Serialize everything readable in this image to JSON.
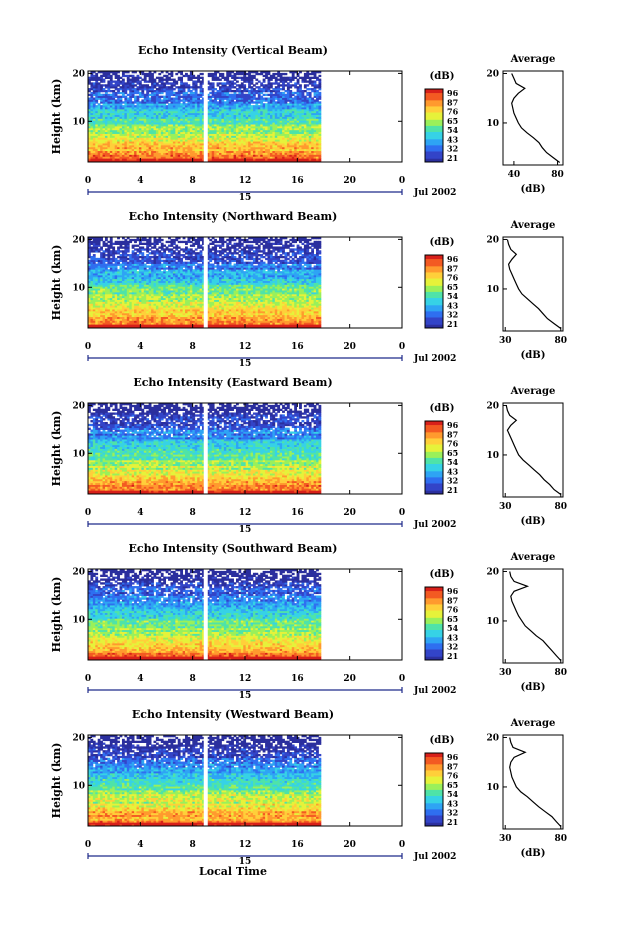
{
  "chart_data": [
    {
      "type": "heatmap",
      "title": "Echo Intensity (Vertical Beam)",
      "ylabel": "Height (km)",
      "yticks": [
        "20",
        "10"
      ],
      "xticks": [
        "0",
        "4",
        "8",
        "12",
        "16",
        "20",
        "0"
      ],
      "xlim": [
        0,
        24
      ],
      "ylim": [
        1.5,
        20.5
      ],
      "data_end_hour": 17.8,
      "gap_hour": 9.0,
      "date_marker": "15",
      "date_label": "Jul 2002",
      "colorbar": {
        "unit": "(dB)",
        "ticks": [
          "96",
          "87",
          "76",
          "65",
          "54",
          "43",
          "32",
          "21"
        ]
      },
      "average": {
        "title": "Average",
        "xlabel": "(dB)",
        "xticks": [
          "40",
          "80"
        ],
        "yticks": [
          "20",
          "10"
        ],
        "xlim": [
          30,
          85
        ],
        "heights": [
          2,
          3,
          4,
          5,
          6,
          7,
          8,
          9,
          10,
          11,
          12,
          13,
          14,
          15,
          16,
          17,
          18,
          19,
          20
        ],
        "values": [
          82,
          76,
          70,
          66,
          63,
          58,
          52,
          47,
          44,
          42,
          40,
          39,
          38,
          40,
          44,
          50,
          42,
          40,
          38
        ]
      }
    },
    {
      "type": "heatmap",
      "title": "Echo Intensity (Northward Beam)",
      "ylabel": "Height (km)",
      "yticks": [
        "20",
        "10"
      ],
      "xticks": [
        "0",
        "4",
        "8",
        "12",
        "16",
        "20",
        "0"
      ],
      "xlim": [
        0,
        24
      ],
      "ylim": [
        1.5,
        20.5
      ],
      "data_end_hour": 17.8,
      "gap_hour": 9.0,
      "date_marker": "15",
      "date_label": "Jul 2002",
      "colorbar": {
        "unit": "(dB)",
        "ticks": [
          "96",
          "87",
          "76",
          "65",
          "54",
          "43",
          "32",
          "21"
        ]
      },
      "average": {
        "title": "Average",
        "xlabel": "(dB)",
        "xticks": [
          "30",
          "80"
        ],
        "yticks": [
          "20",
          "10"
        ],
        "xlim": [
          28,
          82
        ],
        "heights": [
          2,
          3,
          4,
          5,
          6,
          7,
          8,
          9,
          10,
          11,
          12,
          13,
          14,
          15,
          16,
          17,
          18,
          19,
          20
        ],
        "values": [
          80,
          74,
          68,
          64,
          60,
          55,
          50,
          45,
          42,
          40,
          38,
          36,
          34,
          33,
          36,
          40,
          35,
          33,
          32
        ]
      }
    },
    {
      "type": "heatmap",
      "title": "Echo Intensity (Eastward Beam)",
      "ylabel": "Height (km)",
      "yticks": [
        "20",
        "10"
      ],
      "xticks": [
        "0",
        "4",
        "8",
        "12",
        "16",
        "20",
        "0"
      ],
      "xlim": [
        0,
        24
      ],
      "ylim": [
        1.5,
        20.5
      ],
      "data_end_hour": 17.8,
      "gap_hour": 9.0,
      "date_marker": "15",
      "date_label": "Jul 2002",
      "colorbar": {
        "unit": "(dB)",
        "ticks": [
          "96",
          "87",
          "76",
          "65",
          "54",
          "43",
          "32",
          "21"
        ]
      },
      "average": {
        "title": "Average",
        "xlabel": "(dB)",
        "xticks": [
          "30",
          "80"
        ],
        "yticks": [
          "20",
          "10"
        ],
        "xlim": [
          28,
          82
        ],
        "heights": [
          2,
          3,
          4,
          5,
          6,
          7,
          8,
          9,
          10,
          11,
          12,
          13,
          14,
          15,
          16,
          17,
          18,
          19,
          20
        ],
        "values": [
          80,
          74,
          70,
          65,
          61,
          56,
          51,
          46,
          42,
          40,
          38,
          36,
          34,
          32,
          35,
          40,
          34,
          32,
          31
        ]
      }
    },
    {
      "type": "heatmap",
      "title": "Echo Intensity (Southward Beam)",
      "ylabel": "Height (km)",
      "yticks": [
        "20",
        "10"
      ],
      "xticks": [
        "0",
        "4",
        "8",
        "12",
        "16",
        "20",
        "0"
      ],
      "xlim": [
        0,
        24
      ],
      "ylim": [
        1.5,
        20.5
      ],
      "data_end_hour": 17.8,
      "gap_hour": 9.0,
      "date_marker": "15",
      "date_label": "Jul 2002",
      "colorbar": {
        "unit": "(dB)",
        "ticks": [
          "96",
          "87",
          "76",
          "65",
          "54",
          "43",
          "32",
          "21"
        ]
      },
      "average": {
        "title": "Average",
        "xlabel": "(dB)",
        "xticks": [
          "30",
          "80"
        ],
        "yticks": [
          "20",
          "10"
        ],
        "xlim": [
          28,
          82
        ],
        "heights": [
          2,
          3,
          4,
          5,
          6,
          7,
          8,
          9,
          10,
          11,
          12,
          13,
          14,
          15,
          16,
          17,
          18,
          19,
          20
        ],
        "values": [
          80,
          76,
          72,
          68,
          64,
          58,
          53,
          48,
          45,
          42,
          40,
          38,
          36,
          35,
          38,
          50,
          38,
          35,
          34
        ]
      }
    },
    {
      "type": "heatmap",
      "title": "Echo Intensity (Westward Beam)",
      "ylabel": "Height (km)",
      "yticks": [
        "20",
        "10"
      ],
      "xticks": [
        "0",
        "4",
        "8",
        "12",
        "16",
        "20",
        "0"
      ],
      "xlim": [
        0,
        24
      ],
      "ylim": [
        1.5,
        20.5
      ],
      "data_end_hour": 17.8,
      "gap_hour": 9.0,
      "date_marker": "15",
      "date_label": "Jul 2002",
      "xlabel": "Local Time",
      "colorbar": {
        "unit": "(dB)",
        "ticks": [
          "96",
          "87",
          "76",
          "65",
          "54",
          "43",
          "32",
          "21"
        ]
      },
      "average": {
        "title": "Average",
        "xlabel": "(dB)",
        "xticks": [
          "30",
          "80"
        ],
        "yticks": [
          "20",
          "10"
        ],
        "xlim": [
          28,
          82
        ],
        "heights": [
          2,
          3,
          4,
          5,
          6,
          7,
          8,
          9,
          10,
          11,
          12,
          13,
          14,
          15,
          16,
          17,
          18,
          19,
          20
        ],
        "values": [
          80,
          76,
          72,
          66,
          60,
          55,
          50,
          44,
          40,
          38,
          36,
          35,
          34,
          35,
          38,
          48,
          37,
          35,
          34
        ]
      }
    }
  ],
  "colormap": [
    "#2b2f9e",
    "#3344c8",
    "#2f6ff0",
    "#2ea4f4",
    "#36d2e6",
    "#4fe3a8",
    "#9af05a",
    "#e6f23a",
    "#ffcf3a",
    "#ff9a2e",
    "#f35a22",
    "#d8201a"
  ]
}
